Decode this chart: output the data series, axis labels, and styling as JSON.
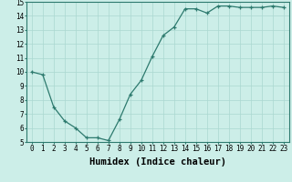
{
  "x": [
    0,
    1,
    2,
    3,
    4,
    5,
    6,
    7,
    8,
    9,
    10,
    11,
    12,
    13,
    14,
    15,
    16,
    17,
    18,
    19,
    20,
    21,
    22,
    23
  ],
  "y": [
    10.0,
    9.8,
    7.5,
    6.5,
    6.0,
    5.3,
    5.3,
    5.1,
    6.6,
    8.4,
    9.4,
    11.1,
    12.6,
    13.2,
    14.5,
    14.5,
    14.2,
    14.7,
    14.7,
    14.6,
    14.6,
    14.6,
    14.7,
    14.6
  ],
  "line_color": "#2d7a6e",
  "marker": "+",
  "markersize": 3.5,
  "linewidth": 0.9,
  "background_color": "#cceee8",
  "grid_color": "#aad8d0",
  "xlabel": "Humidex (Indice chaleur)",
  "ylim": [
    5,
    15
  ],
  "xlim": [
    -0.5,
    23.5
  ],
  "yticks": [
    5,
    6,
    7,
    8,
    9,
    10,
    11,
    12,
    13,
    14,
    15
  ],
  "xticks": [
    0,
    1,
    2,
    3,
    4,
    5,
    6,
    7,
    8,
    9,
    10,
    11,
    12,
    13,
    14,
    15,
    16,
    17,
    18,
    19,
    20,
    21,
    22,
    23
  ],
  "tick_fontsize": 5.5,
  "xlabel_fontsize": 7.5,
  "spine_color": "#2d7a6e"
}
